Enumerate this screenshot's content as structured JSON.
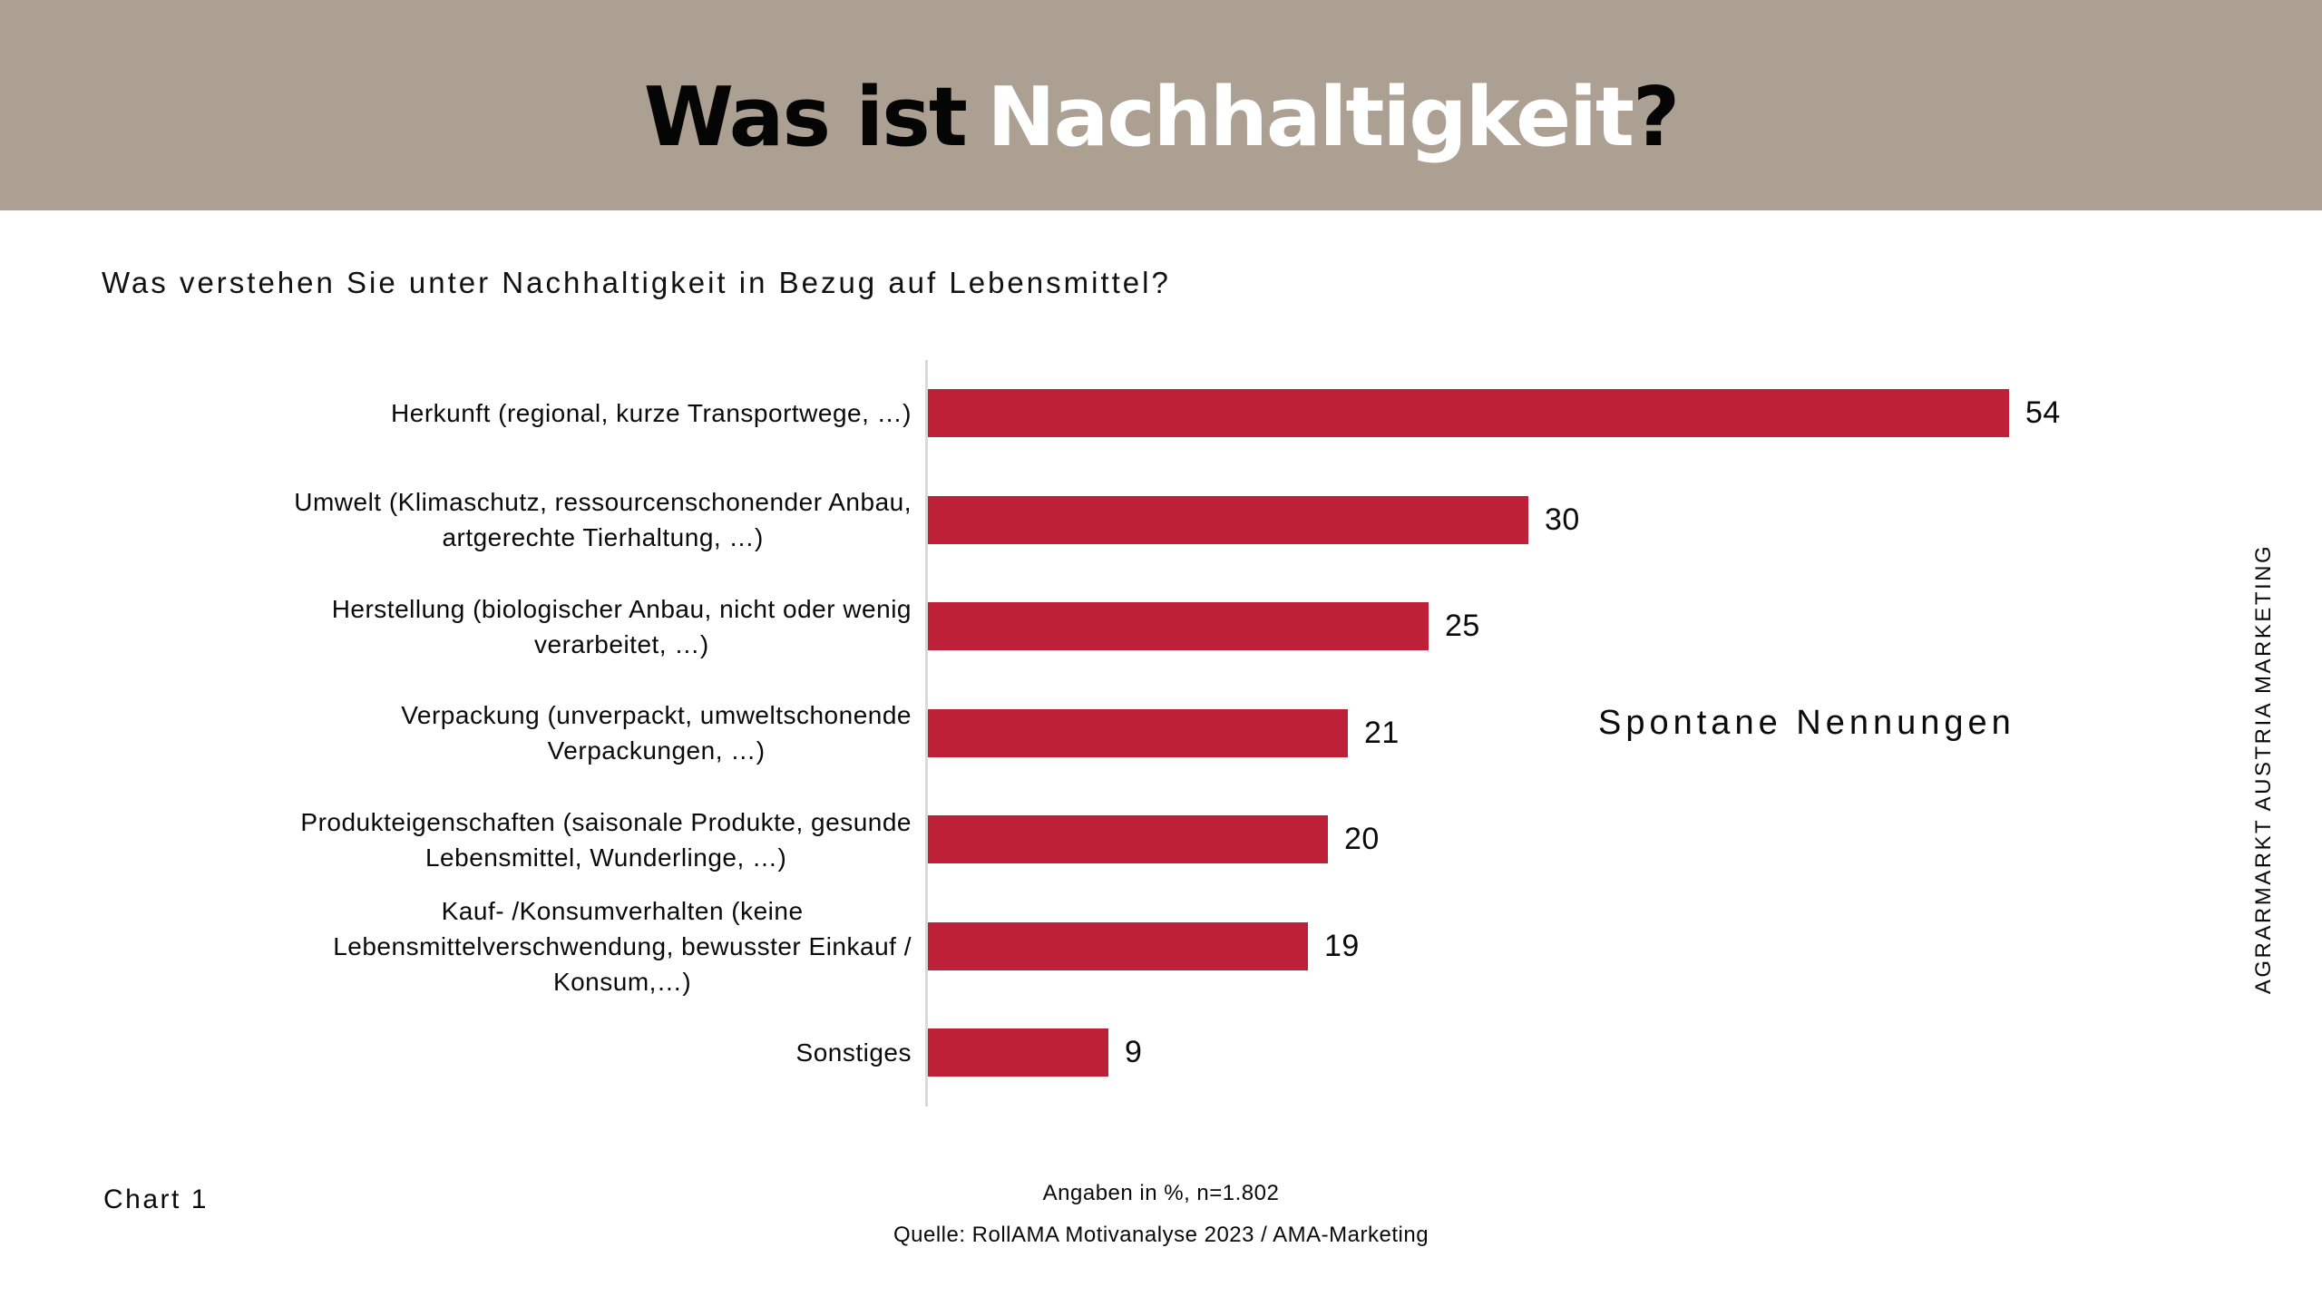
{
  "header": {
    "title_dark": "Was ist",
    "title_light": "Nachhaltigkeit",
    "title_mark": "?"
  },
  "footer": {
    "chart_label": "Chart 1",
    "note": "Angaben in %, n=1.802",
    "source": "Quelle: RollAMA Motivanalyse 2023 / AMA-Marketing",
    "side_text": "AGRARMARKT AUSTRIA MARKETING"
  },
  "colors": {
    "header_bg": "#aca092",
    "bar": "#be2137",
    "axis_line": "#d9d9d9",
    "title_dark": "#050505",
    "title_light": "#ffffff",
    "text": "#0a0a0a"
  },
  "chart_data": {
    "type": "bar",
    "orientation": "horizontal",
    "title": "Was ist Nachhaltigkeit?",
    "subtitle": "Was verstehen Sie unter Nachhaltigkeit in Bezug auf Lebensmittel?",
    "annotation": "Spontane Nennungen",
    "unit": "%",
    "sample_note": "Angaben in %, n=1.802",
    "categories": [
      "Herkunft (regional, kurze Transportwege, …)",
      "Umwelt (Klimaschutz, ressourcenschonender Anbau, artgerechte Tierhaltung, …)",
      "Herstellung (biologischer Anbau, nicht oder wenig verarbeitet, …)",
      "Verpackung (unverpackt, umweltschonende Verpackungen, …)",
      "Produkteigenschaften (saisonale Produkte, gesunde Lebensmittel, Wunderlinge, …)",
      "Kauf- /Konsumverhalten (keine Lebensmittelverschwendung, bewusster Einkauf / Konsum,…)",
      "Sonstiges"
    ],
    "categories_lines": [
      [
        "Herkunft (regional, kurze Transportwege, …)"
      ],
      [
        "Umwelt (Klimaschutz, ressourcenschonender Anbau,",
        "artgerechte Tierhaltung, …)"
      ],
      [
        "Herstellung (biologischer Anbau, nicht oder wenig",
        "verarbeitet, …)"
      ],
      [
        "Verpackung (unverpackt, umweltschonende",
        "Verpackungen, …)"
      ],
      [
        "Produkteigenschaften (saisonale Produkte, gesunde",
        "Lebensmittel, Wunderlinge, …)"
      ],
      [
        "Kauf- /Konsumverhalten (keine",
        "Lebensmittelverschwendung, bewusster Einkauf /",
        "Konsum,…)"
      ],
      [
        "Sonstiges"
      ]
    ],
    "values": [
      54,
      30,
      25,
      21,
      20,
      19,
      9
    ],
    "value_labels_shown": true,
    "value_axis_visible": false,
    "legend": "none",
    "grid": "off",
    "xlim": [
      0,
      57
    ]
  }
}
